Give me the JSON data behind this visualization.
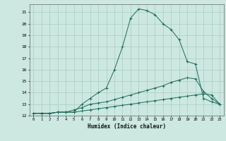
{
  "xlabel": "Humidex (Indice chaleur)",
  "background_color": "#cce8e0",
  "grid_color": "#aaccc4",
  "line_color": "#1a6b5a",
  "xlim": [
    -0.5,
    23.5
  ],
  "ylim": [
    12,
    21.7
  ],
  "yticks": [
    12,
    13,
    14,
    15,
    16,
    17,
    18,
    19,
    20,
    21
  ],
  "xticks": [
    0,
    1,
    2,
    3,
    4,
    5,
    6,
    7,
    8,
    9,
    10,
    11,
    12,
    13,
    14,
    15,
    16,
    17,
    18,
    19,
    20,
    21,
    22,
    23
  ],
  "line1_x": [
    0,
    1,
    2,
    3,
    4,
    5,
    6,
    7,
    8,
    9,
    10,
    11,
    12,
    13,
    14,
    15,
    16,
    17,
    18,
    19,
    20,
    21,
    22,
    23
  ],
  "line1_y": [
    12.2,
    12.2,
    12.2,
    12.3,
    12.3,
    12.3,
    13.0,
    13.5,
    14.0,
    14.4,
    16.0,
    18.0,
    20.5,
    21.3,
    21.15,
    20.8,
    20.0,
    19.5,
    18.6,
    16.7,
    16.5,
    13.5,
    13.2,
    13.0
  ],
  "line2_x": [
    0,
    1,
    2,
    3,
    4,
    5,
    6,
    7,
    8,
    9,
    10,
    11,
    12,
    13,
    14,
    15,
    16,
    17,
    18,
    19,
    20,
    21,
    22,
    23
  ],
  "line2_y": [
    12.2,
    12.2,
    12.2,
    12.3,
    12.3,
    12.5,
    12.7,
    13.0,
    13.1,
    13.2,
    13.4,
    13.6,
    13.8,
    14.0,
    14.2,
    14.4,
    14.6,
    14.9,
    15.1,
    15.3,
    15.2,
    14.1,
    13.5,
    13.0
  ],
  "line3_x": [
    0,
    1,
    2,
    3,
    4,
    5,
    6,
    7,
    8,
    9,
    10,
    11,
    12,
    13,
    14,
    15,
    16,
    17,
    18,
    19,
    20,
    21,
    22,
    23
  ],
  "line3_y": [
    12.2,
    12.2,
    12.2,
    12.3,
    12.3,
    12.3,
    12.4,
    12.5,
    12.6,
    12.7,
    12.8,
    12.9,
    13.0,
    13.1,
    13.2,
    13.3,
    13.4,
    13.5,
    13.6,
    13.7,
    13.8,
    13.9,
    13.8,
    13.0
  ]
}
